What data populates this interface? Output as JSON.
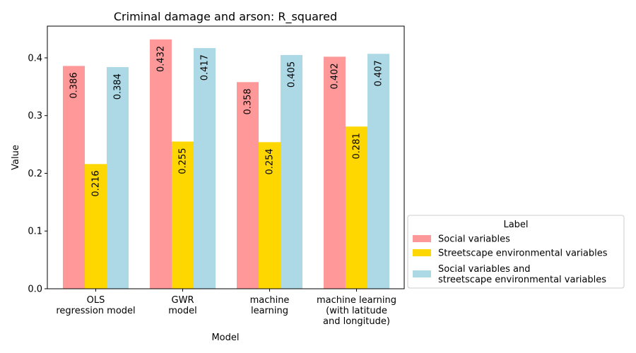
{
  "chart_data": {
    "type": "bar",
    "title": "Criminal damage and arson: R_squared",
    "xlabel": "Model",
    "ylabel": "Value",
    "ylim": [
      0,
      0.455
    ],
    "yticks": [
      "0.0",
      "0.1",
      "0.2",
      "0.3",
      "0.4"
    ],
    "categories": [
      [
        "OLS",
        "regression model"
      ],
      [
        "GWR",
        "model"
      ],
      [
        "machine",
        "learning"
      ],
      [
        "machine learning",
        "(with latitude",
        "and longitude)"
      ]
    ],
    "series": [
      {
        "name": "Social variables",
        "color": "#ff9999",
        "values": [
          0.386,
          0.432,
          0.358,
          0.402
        ],
        "labels": [
          "0.386",
          "0.432",
          "0.358",
          "0.402"
        ]
      },
      {
        "name": "Streetscape environmental variables",
        "color": "#ffd700",
        "values": [
          0.216,
          0.255,
          0.254,
          0.281
        ],
        "labels": [
          "0.216",
          "0.255",
          "0.254",
          "0.281"
        ]
      },
      {
        "name": "Social variables and\nstreetscape environmental variables",
        "color": "#add8e6",
        "values": [
          0.384,
          0.417,
          0.405,
          0.407
        ],
        "labels": [
          "0.384",
          "0.417",
          "0.405",
          "0.407"
        ]
      }
    ],
    "legend": {
      "title": "Label",
      "position": "outside-right-bottom"
    },
    "grid": false
  }
}
